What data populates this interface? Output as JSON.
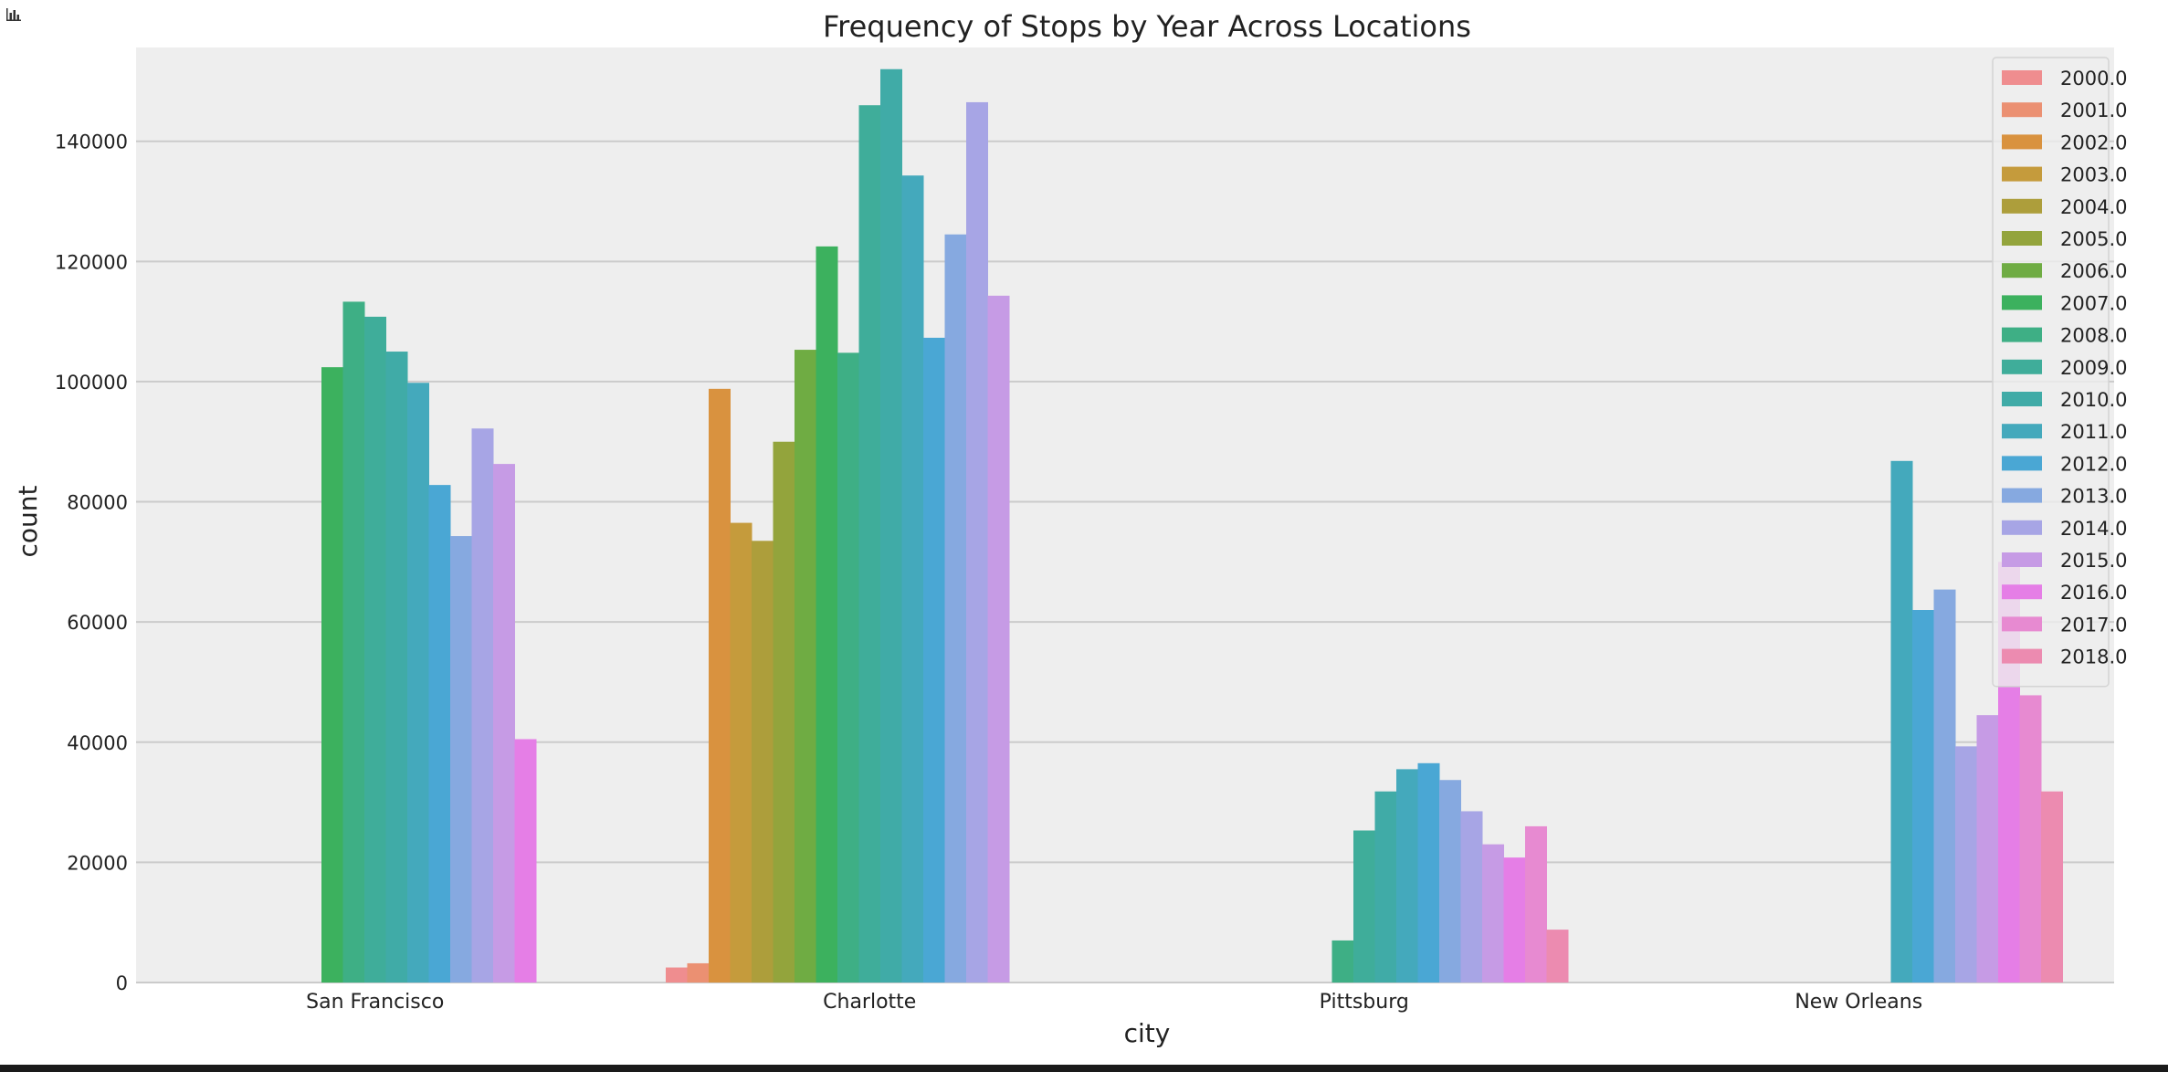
{
  "toolbar": {
    "icon": "bar-chart-icon"
  },
  "chart_data": {
    "type": "bar",
    "title": "Frequency of Stops by Year Across Locations",
    "xlabel": "city",
    "ylabel": "count",
    "ylim": [
      0,
      160000
    ],
    "yticks": [
      0,
      20000,
      40000,
      60000,
      80000,
      100000,
      120000,
      140000
    ],
    "grid": true,
    "legend_position": "top-right",
    "categories": [
      "San Francisco",
      "Charlotte",
      "Pittsburg",
      "New Orleans"
    ],
    "series": [
      {
        "name": "2000.0",
        "color": "#ef8d8f",
        "values": [
          null,
          2500,
          null,
          null
        ]
      },
      {
        "name": "2001.0",
        "color": "#eb9072",
        "values": [
          null,
          3200,
          null,
          null
        ]
      },
      {
        "name": "2002.0",
        "color": "#d9923f",
        "values": [
          null,
          98800,
          null,
          null
        ]
      },
      {
        "name": "2003.0",
        "color": "#c59b3c",
        "values": [
          null,
          76500,
          null,
          null
        ]
      },
      {
        "name": "2004.0",
        "color": "#ad9e3b",
        "values": [
          null,
          73500,
          null,
          null
        ]
      },
      {
        "name": "2005.0",
        "color": "#93a43c",
        "values": [
          null,
          90000,
          null,
          null
        ]
      },
      {
        "name": "2006.0",
        "color": "#6fac43",
        "values": [
          null,
          105300,
          null,
          null
        ]
      },
      {
        "name": "2007.0",
        "color": "#3cb15e",
        "values": [
          102400,
          122500,
          null,
          null
        ]
      },
      {
        "name": "2008.0",
        "color": "#3eaf85",
        "values": [
          113300,
          104800,
          7000,
          null
        ]
      },
      {
        "name": "2009.0",
        "color": "#3fad9a",
        "values": [
          110800,
          146000,
          25300,
          null
        ]
      },
      {
        "name": "2010.0",
        "color": "#40aba7",
        "values": [
          105000,
          152000,
          31800,
          null
        ]
      },
      {
        "name": "2011.0",
        "color": "#44a9bc",
        "values": [
          99800,
          134300,
          35500,
          86800
        ]
      },
      {
        "name": "2012.0",
        "color": "#4aa7d4",
        "values": [
          82800,
          107300,
          36500,
          62000
        ]
      },
      {
        "name": "2013.0",
        "color": "#86a9e0",
        "values": [
          74300,
          124500,
          33700,
          65400
        ]
      },
      {
        "name": "2014.0",
        "color": "#a7a5e5",
        "values": [
          92200,
          146500,
          28500,
          39300
        ]
      },
      {
        "name": "2015.0",
        "color": "#c69be5",
        "values": [
          86300,
          114300,
          23000,
          44500
        ]
      },
      {
        "name": "2016.0",
        "color": "#e57ee6",
        "values": [
          40500,
          null,
          20800,
          70000
        ]
      },
      {
        "name": "2017.0",
        "color": "#e78ad1",
        "values": [
          null,
          null,
          26000,
          47800
        ]
      },
      {
        "name": "2018.0",
        "color": "#ec8bb0",
        "values": [
          null,
          null,
          8800,
          31800
        ]
      }
    ]
  }
}
